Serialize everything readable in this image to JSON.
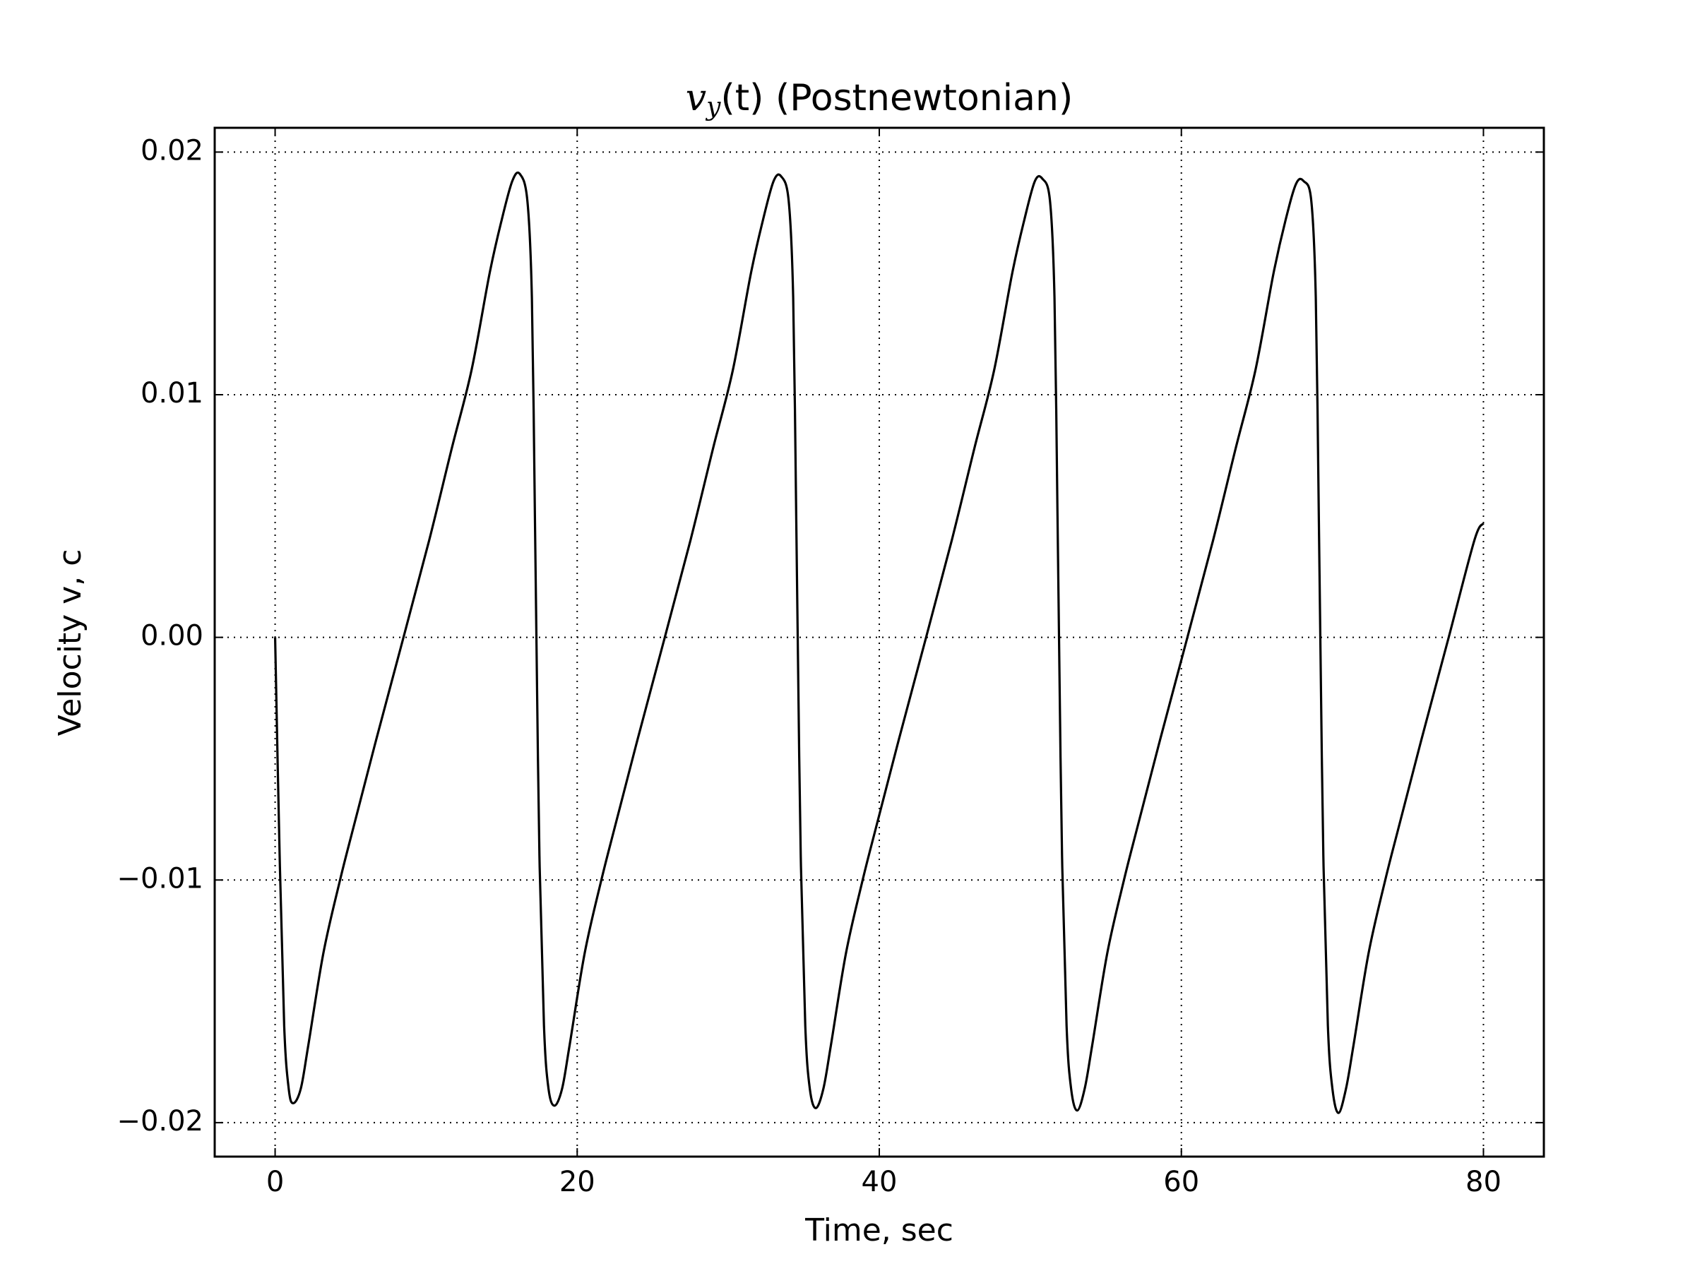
{
  "chart_data": {
    "type": "line",
    "title": "v_y(t) (Postnewtonian)",
    "x_label": "Time, sec",
    "y_label": "Velocity v, c",
    "xlim": [
      -4,
      84
    ],
    "ylim": [
      -0.0214,
      0.021
    ],
    "xticks": [
      0,
      20,
      40,
      60,
      80
    ],
    "yticks": [
      {
        "value": -0.02,
        "label": "−0.02"
      },
      {
        "value": -0.01,
        "label": "−0.01"
      },
      {
        "value": 0,
        "label": "0.00"
      },
      {
        "value": 0.01,
        "label": "0.01"
      },
      {
        "value": 0.02,
        "label": "0.02"
      }
    ],
    "grid": true,
    "series": [
      {
        "color": "#000000",
        "x": [
          0,
          0.3,
          0.6,
          0.9,
          1.2,
          1.7,
          2.2,
          3.2,
          4.3,
          5.2,
          6.7,
          8.5,
          10.2,
          11.7,
          13.0,
          14.2,
          15.0,
          15.7,
          16.2,
          16.7,
          17.0,
          17.2,
          17.3,
          17.5,
          17.8,
          18.1,
          18.5,
          19.0,
          19.5,
          20.5,
          21.6,
          22.5,
          24.0,
          25.8,
          27.5,
          29.0,
          30.3,
          31.5,
          32.3,
          33.0,
          33.5,
          34.0,
          34.3,
          34.5,
          34.6,
          34.8,
          35.1,
          35.4,
          35.8,
          36.3,
          36.8,
          37.8,
          38.9,
          39.8,
          41.3,
          43.1,
          44.8,
          46.3,
          47.6,
          48.8,
          49.6,
          50.3,
          50.8,
          51.3,
          51.6,
          51.8,
          51.9,
          52.1,
          52.4,
          52.7,
          53.1,
          53.6,
          54.1,
          55.1,
          56.2,
          57.1,
          58.6,
          60.4,
          62.1,
          63.6,
          64.9,
          66.1,
          66.9,
          67.6,
          68.1,
          68.6,
          68.9,
          69.1,
          69.2,
          69.4,
          69.7,
          70.0,
          70.4,
          70.9,
          71.4,
          72.4,
          73.5,
          74.4,
          75.9,
          77.7,
          79.4,
          80
        ],
        "values": [
          0,
          -0.009,
          -0.016,
          -0.0186,
          -0.0192,
          -0.0186,
          -0.0168,
          -0.013,
          -0.01,
          -0.0078,
          -0.0042,
          0,
          0.004,
          0.0078,
          0.011,
          0.015,
          0.0172,
          0.0188,
          0.0191,
          0.018,
          0.014,
          0.005,
          0,
          -0.009,
          -0.016,
          -0.0186,
          -0.0193,
          -0.0186,
          -0.0168,
          -0.013,
          -0.01,
          -0.0078,
          -0.0042,
          0,
          0.004,
          0.0078,
          0.011,
          0.015,
          0.0172,
          0.0188,
          0.019,
          0.018,
          0.014,
          0.005,
          0,
          -0.009,
          -0.016,
          -0.0186,
          -0.0194,
          -0.0186,
          -0.0168,
          -0.013,
          -0.01,
          -0.0078,
          -0.0042,
          0,
          0.004,
          0.0078,
          0.011,
          0.015,
          0.0172,
          0.0188,
          0.0189,
          0.018,
          0.014,
          0.005,
          0,
          -0.009,
          -0.016,
          -0.0186,
          -0.0195,
          -0.0186,
          -0.0168,
          -0.013,
          -0.01,
          -0.0078,
          -0.0042,
          0,
          0.004,
          0.0078,
          0.011,
          0.015,
          0.0172,
          0.0187,
          0.0188,
          0.018,
          0.014,
          0.005,
          0,
          -0.009,
          -0.016,
          -0.0186,
          -0.0196,
          -0.0186,
          -0.0168,
          -0.013,
          -0.01,
          -0.0078,
          -0.0042,
          0,
          0.004,
          0.0047
        ]
      }
    ]
  }
}
